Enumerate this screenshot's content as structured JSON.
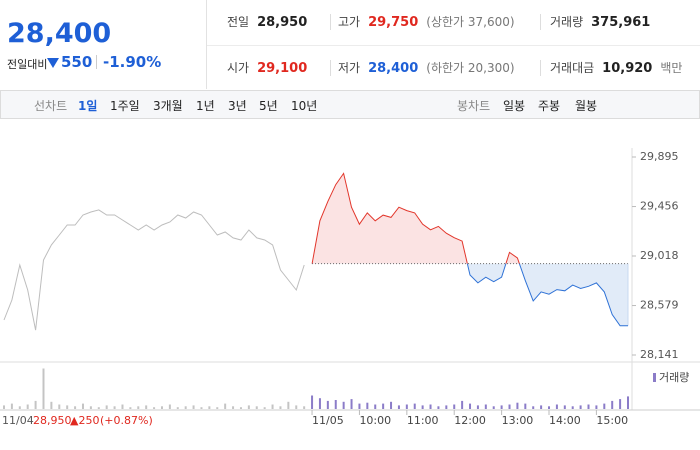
{
  "header": {
    "price": "28,400",
    "change_label": "전일대비",
    "change": "550",
    "change_rate": "-1.90%",
    "color": "#1e5fd6"
  },
  "info": [
    {
      "label": "전일",
      "value": "28,950",
      "color": "#222222"
    },
    {
      "label": "고가",
      "value": "29,750",
      "note": "(상한가 37,600)",
      "color": "#e0281f"
    },
    {
      "label": "거래량",
      "value": "375,961",
      "color": "#222222"
    },
    {
      "label": "시가",
      "value": "29,100",
      "color": "#e0281f"
    },
    {
      "label": "저가",
      "value": "28,400",
      "note": "(하한가 20,300)",
      "color": "#1e5fd6"
    },
    {
      "label": "거래대금",
      "value": "10,920",
      "note": "백만",
      "color": "#222222"
    }
  ],
  "tabs": {
    "line_label": "선차트",
    "line_tabs": [
      "1일",
      "1주일",
      "3개월",
      "1년",
      "3년",
      "5년",
      "10년"
    ],
    "line_active": 0,
    "candle_label": "봉차트",
    "candle_tabs": [
      "일봉",
      "주봉",
      "월봉"
    ]
  },
  "summary": {
    "date": "11/04",
    "close": "28,950",
    "change": "▲250",
    "rate": "(+0.87%)"
  },
  "chart_data": {
    "type": "line",
    "categories": [
      null,
      null,
      null,
      null,
      null,
      null,
      null,
      null,
      null,
      null,
      null,
      null,
      null,
      null,
      null,
      null,
      null,
      null,
      null,
      null,
      null,
      null,
      null,
      null,
      null,
      null,
      null,
      null,
      null,
      null,
      null,
      null,
      null,
      null,
      null,
      null,
      null,
      null,
      null,
      "11/05",
      null,
      null,
      null,
      null,
      null,
      "10:00",
      null,
      null,
      null,
      null,
      null,
      "11:00",
      null,
      null,
      null,
      null,
      null,
      "12:00",
      null,
      null,
      null,
      null,
      null,
      "13:00",
      null,
      null,
      null,
      null,
      null,
      "14:00",
      null,
      null,
      null,
      null,
      null,
      "15:00",
      null,
      null,
      null,
      null
    ],
    "series": [
      {
        "color": "#bdbdbd",
        "values": [
          28451,
          28628,
          28938,
          28717,
          28362,
          28983,
          29116,
          29204,
          29293,
          29293,
          29381,
          29408,
          29426,
          29381,
          29381,
          29337,
          29293,
          29248,
          29293,
          29248,
          29293,
          29319,
          29381,
          29355,
          29408,
          29381,
          29293,
          29204,
          29231,
          29178,
          29160,
          29248,
          29178,
          29160,
          29116,
          28894,
          28805,
          28717,
          28938,
          null,
          null,
          null,
          null,
          null,
          null,
          null,
          null,
          null,
          null,
          null,
          null,
          null,
          null,
          null,
          null,
          null,
          null,
          null,
          null,
          null,
          null,
          null,
          null,
          null,
          null,
          null,
          null,
          null,
          null,
          null,
          null,
          null,
          null,
          null,
          null,
          null,
          null,
          null,
          null,
          null
        ]
      },
      {
        "color_above": "#e2362b",
        "color_below": "#2f72d6",
        "fill_above": "#fbe3e3",
        "fill_below": "#e1ebf8",
        "values": [
          null,
          null,
          null,
          null,
          null,
          null,
          null,
          null,
          null,
          null,
          null,
          null,
          null,
          null,
          null,
          null,
          null,
          null,
          null,
          null,
          null,
          null,
          null,
          null,
          null,
          null,
          null,
          null,
          null,
          null,
          null,
          null,
          null,
          null,
          null,
          null,
          null,
          null,
          null,
          28950,
          29330,
          29500,
          29650,
          29750,
          29450,
          29300,
          29400,
          29330,
          29380,
          29360,
          29450,
          29420,
          29400,
          29300,
          29250,
          29280,
          29220,
          29180,
          29150,
          28850,
          28780,
          28830,
          28790,
          28830,
          29050,
          29000,
          28800,
          28620,
          28700,
          28680,
          28720,
          28710,
          28760,
          28730,
          28750,
          28780,
          28700,
          28500,
          28400,
          28400
        ]
      }
    ],
    "baseline": 28950,
    "ylim": [
      28141,
      29895
    ],
    "yticks": [
      {
        "value": 29895,
        "label": "29,895"
      },
      {
        "value": 29456,
        "label": "29,456"
      },
      {
        "value": 29018,
        "label": "29,018"
      },
      {
        "value": 28579,
        "label": "28,579"
      },
      {
        "value": 28141,
        "label": "28,141"
      }
    ],
    "volume": {
      "legend": "거래량",
      "lim": [
        0,
        50000
      ],
      "series": [
        {
          "color": "#c4c4c4",
          "values": [
            4000,
            6000,
            3000,
            5000,
            9000,
            45000,
            8000,
            5000,
            4000,
            3000,
            6000,
            3000,
            2000,
            4000,
            3000,
            5000,
            2000,
            3000,
            4000,
            2000,
            3000,
            5000,
            2000,
            3000,
            4000,
            2000,
            3000,
            2000,
            6000,
            3000,
            2000,
            4000,
            3000,
            2000,
            5000,
            3000,
            8000,
            4000,
            3000,
            null,
            null,
            null,
            null,
            null,
            null,
            null,
            null,
            null,
            null,
            null,
            null,
            null,
            null,
            null,
            null,
            null,
            null,
            null,
            null,
            null,
            null,
            null,
            null,
            null,
            null,
            null,
            null,
            null,
            null,
            null,
            null,
            null,
            null,
            null,
            null,
            null,
            null,
            null,
            null,
            null
          ]
        },
        {
          "color": "#8b7cc8",
          "values": [
            null,
            null,
            null,
            null,
            null,
            null,
            null,
            null,
            null,
            null,
            null,
            null,
            null,
            null,
            null,
            null,
            null,
            null,
            null,
            null,
            null,
            null,
            null,
            null,
            null,
            null,
            null,
            null,
            null,
            null,
            null,
            null,
            null,
            null,
            null,
            null,
            null,
            null,
            null,
            15000,
            12000,
            9000,
            10000,
            8000,
            11000,
            6000,
            7000,
            5000,
            6000,
            8000,
            4000,
            5000,
            6000,
            4000,
            5000,
            3000,
            4000,
            5000,
            9000,
            6000,
            4000,
            5000,
            3000,
            4000,
            5000,
            7000,
            6000,
            3000,
            4000,
            3000,
            5000,
            4000,
            3000,
            4000,
            5000,
            4000,
            6000,
            9000,
            11000,
            14000
          ]
        }
      ]
    }
  }
}
